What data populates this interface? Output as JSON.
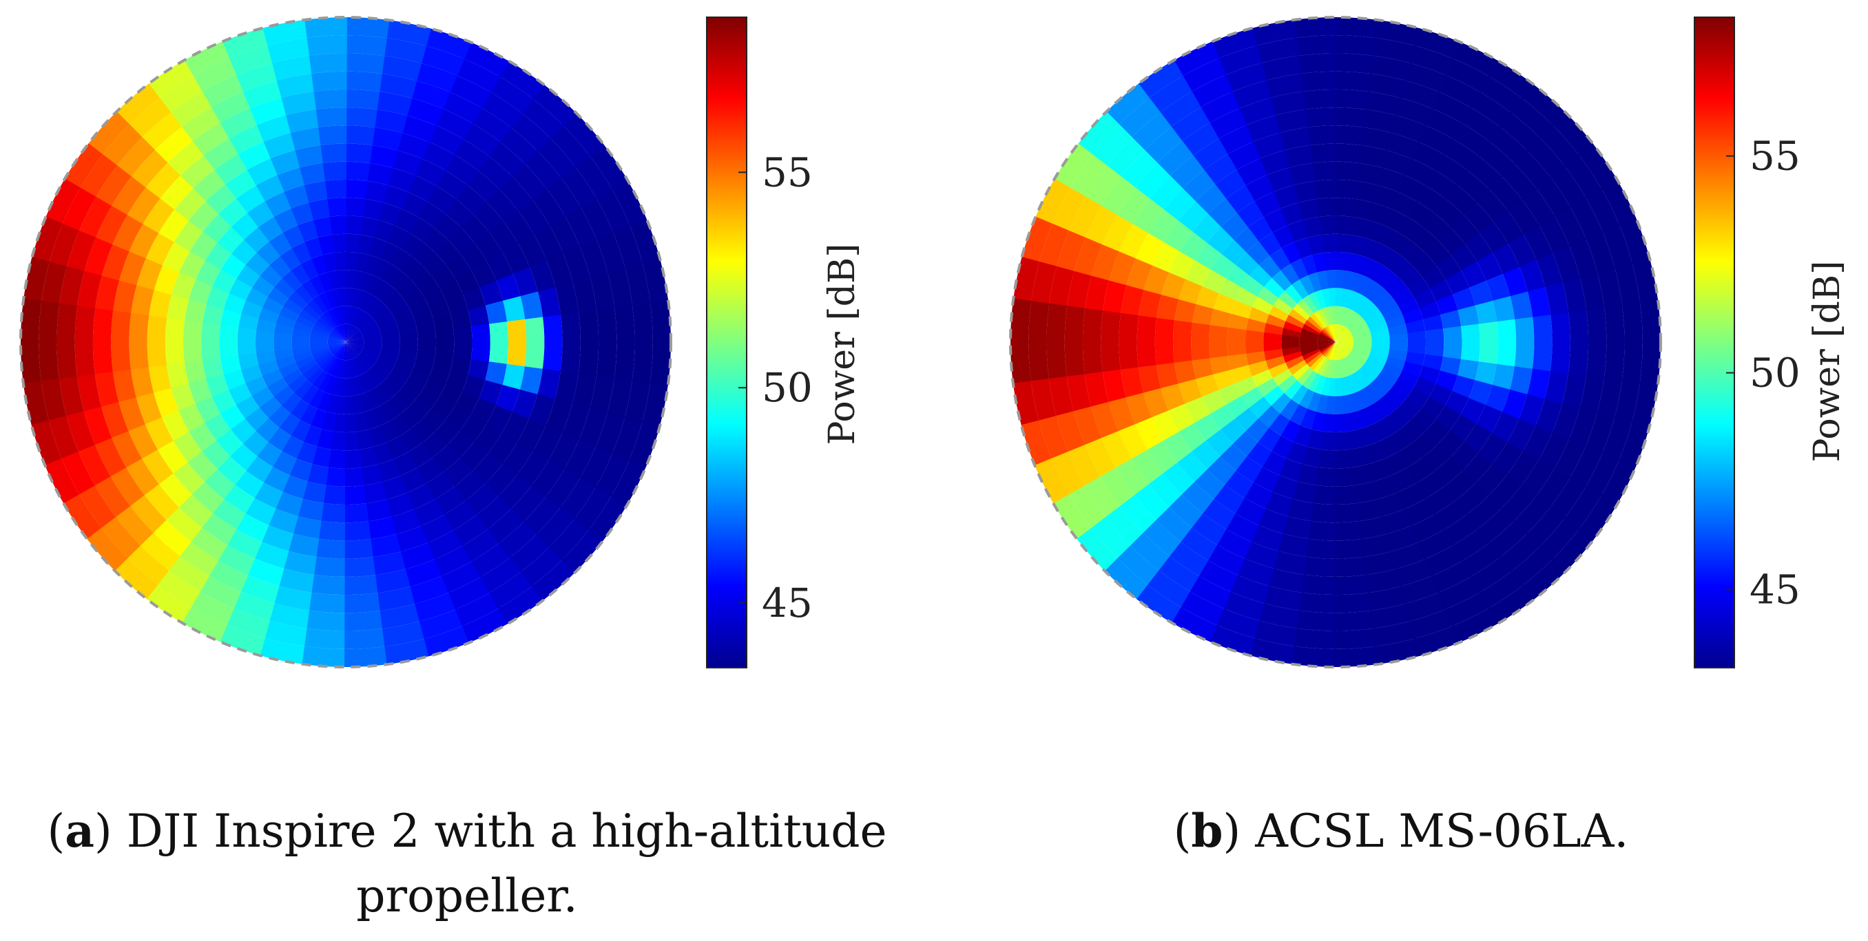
{
  "chart_data": [
    {
      "type": "heatmap",
      "projection": "polar",
      "caption_letter": "a",
      "caption_text": "DJI Inspire 2 with a high-altitude propeller.",
      "colorbar": {
        "label": "Power [dB]",
        "range": [
          43.5,
          58.6
        ],
        "ticks": [
          45,
          50,
          55
        ],
        "colormap": "jet"
      },
      "pattern": {
        "base": 43.5,
        "main_lobe": {
          "azimuth_deg": 180,
          "peak": 58.5,
          "azimuth_width_deg": 55,
          "radius_center": 0.98,
          "radius_width": 0.45
        },
        "secondary_lobe": {
          "azimuth_deg": 0,
          "radius_center": 0.53,
          "peak": 54.5,
          "azimuth_width_deg": 9,
          "radius_width": 0.06
        },
        "center_value": 44.6
      }
    },
    {
      "type": "heatmap",
      "projection": "polar",
      "caption_letter": "b",
      "caption_text": "ACSL MS-06LA.",
      "colorbar": {
        "label": "Power [dB]",
        "range": [
          43.2,
          58.2
        ],
        "ticks": [
          45,
          50,
          55
        ],
        "colormap": "jet"
      },
      "pattern": {
        "base": 43.3,
        "main_lobe": {
          "azimuth_deg": 180,
          "peak": 58.0,
          "azimuth_width_deg": 30,
          "radius_center": 1.0,
          "radius_width": 0.95
        },
        "secondary_lobe": {
          "azimuth_deg": 0,
          "radius_center": 0.48,
          "peak": 49.5,
          "azimuth_width_deg": 14,
          "radius_width": 0.12
        },
        "center_value": 52.3
      }
    }
  ]
}
